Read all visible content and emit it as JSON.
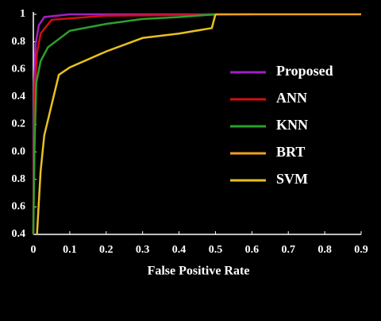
{
  "chart_data": {
    "type": "line",
    "xlabel": "False Positive Rate",
    "xlim": [
      0,
      0.9
    ],
    "xticks": [
      0,
      0.1,
      0.2,
      0.3,
      0.4,
      0.5,
      0.6,
      0.7,
      0.8,
      0.9
    ],
    "ylim": [
      0,
      8
    ],
    "yticks": [
      {
        "value": 0,
        "label": "0.4"
      },
      {
        "value": 1,
        "label": "0.6"
      },
      {
        "value": 2,
        "label": "0.8"
      },
      {
        "value": 3,
        "label": "0.0"
      },
      {
        "value": 4,
        "label": "0.2"
      },
      {
        "value": 5,
        "label": "0.4"
      },
      {
        "value": 6,
        "label": "0.6"
      },
      {
        "value": 7,
        "label": "0.8"
      },
      {
        "value": 8,
        "label": "1"
      }
    ],
    "series": [
      {
        "name": "Proposed",
        "color": "#a020c0",
        "x": [
          0,
          0.002,
          0.006,
          0.015,
          0.03,
          0.1,
          0.5
        ],
        "values": [
          0,
          5.5,
          6.9,
          7.6,
          7.9,
          8,
          8
        ]
      },
      {
        "name": "ANN",
        "color": "#d01010",
        "x": [
          0,
          0.003,
          0.01,
          0.02,
          0.05,
          0.2,
          0.6
        ],
        "values": [
          0,
          5,
          6.6,
          7.3,
          7.8,
          7.95,
          8
        ]
      },
      {
        "name": "KNN",
        "color": "#2ca02c",
        "x": [
          0,
          0.003,
          0.008,
          0.02,
          0.04,
          0.1,
          0.2,
          0.3,
          0.4,
          0.5
        ],
        "values": [
          0,
          3,
          5.5,
          6.3,
          6.8,
          7.4,
          7.65,
          7.83,
          7.9,
          8
        ]
      },
      {
        "name": "BRT",
        "color": "#f0a020",
        "x": [
          0.5,
          0.9
        ],
        "values": [
          8,
          8
        ]
      },
      {
        "name": "SVM",
        "color": "#e8c020",
        "x": [
          0.01,
          0.02,
          0.03,
          0.07,
          0.1,
          0.2,
          0.3,
          0.4,
          0.49,
          0.5
        ],
        "values": [
          0,
          2.3,
          3.6,
          5.8,
          6.07,
          6.65,
          7.14,
          7.3,
          7.5,
          8
        ]
      }
    ]
  }
}
